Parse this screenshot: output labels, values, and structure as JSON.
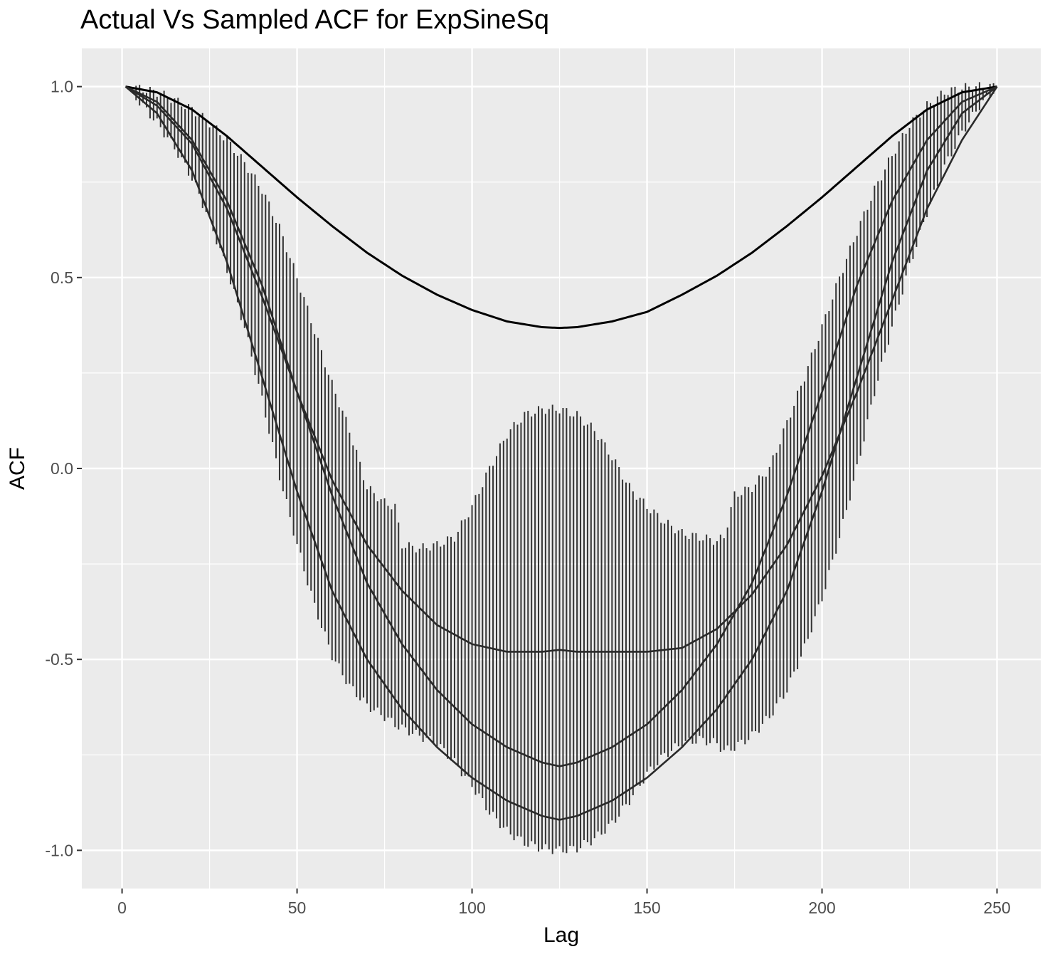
{
  "chart_data": {
    "type": "line",
    "title": "Actual Vs Sampled ACF for ExpSineSq",
    "xlabel": "Lag",
    "ylabel": "ACF",
    "xlim": [
      -11.5,
      262.5
    ],
    "ylim": [
      -1.1,
      1.1
    ],
    "x_ticks": [
      0,
      50,
      100,
      150,
      200,
      250
    ],
    "y_ticks": [
      -1.0,
      -0.5,
      0.0,
      0.5,
      1.0
    ],
    "x_tick_labels": [
      "0",
      "50",
      "100",
      "150",
      "200",
      "250"
    ],
    "y_tick_labels": [
      "-1.0",
      "-0.5",
      "0.0",
      "0.5",
      "1.0"
    ],
    "grid": true,
    "background": "#EBEBEB",
    "series": [
      {
        "kind": "line",
        "color": "#000000",
        "x": [
          1,
          10,
          20,
          30,
          40,
          50,
          60,
          70,
          80,
          90,
          100,
          110,
          120,
          125,
          130,
          140,
          150,
          160,
          170,
          180,
          190,
          200,
          210,
          220,
          230,
          240,
          250
        ],
        "values": [
          1.0,
          0.985,
          0.94,
          0.87,
          0.79,
          0.71,
          0.635,
          0.565,
          0.505,
          0.455,
          0.415,
          0.385,
          0.37,
          0.368,
          0.37,
          0.385,
          0.41,
          0.455,
          0.505,
          0.565,
          0.635,
          0.71,
          0.79,
          0.87,
          0.94,
          0.985,
          1.0
        ]
      },
      {
        "kind": "errorbar",
        "color": "#333333",
        "x": [
          1,
          5,
          10,
          15,
          20,
          25,
          30,
          35,
          40,
          45,
          50,
          55,
          60,
          65,
          70,
          75,
          78,
          80,
          85,
          90,
          95,
          100,
          105,
          110,
          115,
          120,
          125,
          130,
          135,
          140,
          145,
          150,
          155,
          160,
          165,
          170,
          172,
          175,
          180,
          185,
          190,
          195,
          200,
          205,
          210,
          215,
          220,
          225,
          230,
          235,
          240,
          245,
          250
        ],
        "upper": [
          1.0,
          0.995,
          0.985,
          0.965,
          0.94,
          0.905,
          0.86,
          0.8,
          0.73,
          0.63,
          0.5,
          0.36,
          0.22,
          0.1,
          -0.05,
          -0.09,
          -0.1,
          -0.2,
          -0.21,
          -0.2,
          -0.18,
          -0.1,
          0.0,
          0.09,
          0.14,
          0.155,
          0.155,
          0.14,
          0.1,
          0.03,
          -0.05,
          -0.1,
          -0.14,
          -0.17,
          -0.18,
          -0.19,
          -0.18,
          -0.07,
          -0.05,
          0.0,
          0.12,
          0.24,
          0.37,
          0.5,
          0.62,
          0.73,
          0.82,
          0.9,
          0.95,
          0.985,
          0.997,
          1.0,
          1.0
        ],
        "lower": [
          1.0,
          0.96,
          0.905,
          0.84,
          0.76,
          0.65,
          0.52,
          0.37,
          0.18,
          -0.02,
          -0.2,
          -0.36,
          -0.49,
          -0.57,
          -0.62,
          -0.65,
          -0.67,
          -0.68,
          -0.7,
          -0.72,
          -0.77,
          -0.83,
          -0.9,
          -0.95,
          -0.98,
          -0.995,
          -1.0,
          -0.995,
          -0.97,
          -0.93,
          -0.87,
          -0.8,
          -0.75,
          -0.72,
          -0.71,
          -0.72,
          -0.74,
          -0.73,
          -0.7,
          -0.65,
          -0.58,
          -0.47,
          -0.34,
          -0.18,
          0.0,
          0.2,
          0.37,
          0.53,
          0.67,
          0.79,
          0.88,
          0.95,
          1.0
        ]
      },
      {
        "kind": "line",
        "color": "#2A2A2A",
        "x": [
          1,
          10,
          20,
          30,
          40,
          50,
          60,
          70,
          80,
          90,
          100,
          110,
          120,
          125,
          130,
          140,
          150,
          160,
          170,
          180,
          190,
          200,
          210,
          220,
          230,
          240,
          250
        ],
        "values": [
          1.0,
          0.96,
          0.86,
          0.7,
          0.48,
          0.2,
          -0.07,
          -0.3,
          -0.46,
          -0.58,
          -0.67,
          -0.73,
          -0.77,
          -0.78,
          -0.77,
          -0.73,
          -0.67,
          -0.58,
          -0.46,
          -0.3,
          -0.07,
          0.2,
          0.48,
          0.7,
          0.86,
          0.96,
          1.0
        ]
      },
      {
        "kind": "line",
        "color": "#2A2A2A",
        "x": [
          1,
          10,
          20,
          30,
          40,
          50,
          60,
          70,
          80,
          90,
          100,
          110,
          120,
          125,
          130,
          140,
          150,
          160,
          170,
          180,
          190,
          200,
          210,
          220,
          230,
          240,
          250
        ],
        "values": [
          1.0,
          0.93,
          0.78,
          0.54,
          0.24,
          -0.06,
          -0.32,
          -0.5,
          -0.63,
          -0.73,
          -0.81,
          -0.87,
          -0.91,
          -0.92,
          -0.91,
          -0.87,
          -0.81,
          -0.73,
          -0.63,
          -0.5,
          -0.32,
          -0.06,
          0.24,
          0.54,
          0.78,
          0.93,
          1.0
        ]
      },
      {
        "kind": "line",
        "color": "#2A2A2A",
        "x": [
          1,
          10,
          20,
          30,
          40,
          50,
          60,
          70,
          80,
          90,
          100,
          110,
          120,
          125,
          130,
          140,
          150,
          160,
          170,
          180,
          190,
          200,
          210,
          220,
          230,
          240,
          250
        ],
        "values": [
          1.0,
          0.95,
          0.85,
          0.68,
          0.45,
          0.2,
          -0.03,
          -0.2,
          -0.32,
          -0.41,
          -0.46,
          -0.48,
          -0.48,
          -0.475,
          -0.48,
          -0.48,
          -0.48,
          -0.47,
          -0.42,
          -0.33,
          -0.2,
          -0.02,
          0.2,
          0.44,
          0.68,
          0.86,
          1.0
        ]
      }
    ]
  }
}
